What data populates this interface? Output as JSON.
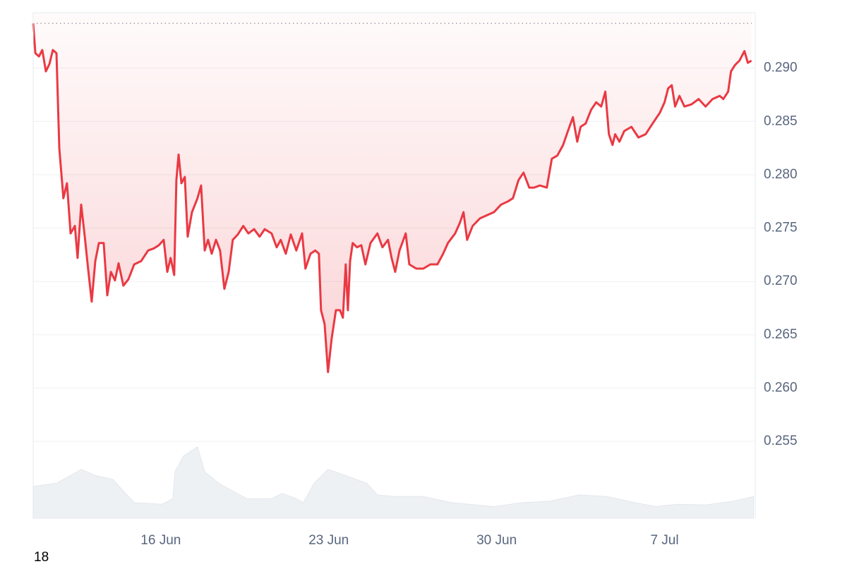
{
  "chart_data": {
    "type": "line",
    "xlim": [
      10.68,
      40.78
    ],
    "ylim": [
      0.2478,
      0.2952
    ],
    "y2lim": [
      0,
      100
    ],
    "xticks": [
      {
        "value": 16,
        "label": "16 Jun"
      },
      {
        "value": 23,
        "label": "23 Jun"
      },
      {
        "value": 30,
        "label": "30 Jun"
      },
      {
        "value": 37,
        "label": "7 Jul"
      }
    ],
    "yticks": [
      {
        "value": 0.255,
        "label": "0.255"
      },
      {
        "value": 0.26,
        "label": "0.260"
      },
      {
        "value": 0.265,
        "label": "0.265"
      },
      {
        "value": 0.27,
        "label": "0.270"
      },
      {
        "value": 0.275,
        "label": "0.275"
      },
      {
        "value": 0.28,
        "label": "0.280"
      },
      {
        "value": 0.285,
        "label": "0.285"
      },
      {
        "value": 0.29,
        "label": "0.290"
      }
    ],
    "grid": true,
    "reference_line": 0.2942,
    "footer_text": "18",
    "series": [
      {
        "color": "#ea3943",
        "x": [
          10.68,
          10.77,
          10.92,
          11.06,
          11.21,
          11.36,
          11.5,
          11.65,
          11.77,
          11.94,
          12.09,
          12.24,
          12.42,
          12.53,
          12.68,
          12.83,
          12.97,
          13.12,
          13.27,
          13.42,
          13.62,
          13.77,
          13.92,
          14.09,
          14.24,
          14.44,
          14.65,
          14.89,
          15.18,
          15.47,
          15.71,
          15.92,
          16.12,
          16.27,
          16.41,
          16.56,
          16.65,
          16.74,
          16.86,
          17.0,
          17.12,
          17.3,
          17.53,
          17.68,
          17.83,
          17.97,
          18.12,
          18.3,
          18.47,
          18.65,
          18.83,
          19.0,
          19.21,
          19.44,
          19.65,
          19.89,
          20.12,
          20.33,
          20.62,
          20.83,
          21.0,
          21.21,
          21.42,
          21.65,
          21.89,
          22.03,
          22.24,
          22.44,
          22.59,
          22.68,
          22.83,
          22.97,
          23.12,
          23.3,
          23.47,
          23.59,
          23.71,
          23.8,
          23.89,
          24.0,
          24.18,
          24.36,
          24.53,
          24.74,
          25.03,
          25.24,
          25.47,
          25.62,
          25.77,
          25.95,
          26.21,
          26.36,
          26.65,
          26.94,
          27.24,
          27.53,
          27.77,
          27.97,
          28.27,
          28.47,
          28.62,
          28.77,
          29.0,
          29.3,
          29.59,
          29.89,
          30.18,
          30.47,
          30.68,
          30.91,
          31.12,
          31.36,
          31.56,
          31.8,
          32.09,
          32.3,
          32.53,
          32.77,
          32.97,
          33.18,
          33.36,
          33.5,
          33.71,
          33.94,
          34.15,
          34.36,
          34.53,
          34.68,
          34.83,
          34.94,
          35.12,
          35.32,
          35.62,
          35.91,
          36.21,
          36.5,
          36.8,
          37.0,
          37.15,
          37.3,
          37.44,
          37.62,
          37.83,
          38.12,
          38.42,
          38.71,
          39.0,
          39.3,
          39.45,
          39.65,
          39.77,
          39.94,
          40.12,
          40.33,
          40.47,
          40.62
        ],
        "values": [
          0.2942,
          0.2914,
          0.2911,
          0.2917,
          0.2897,
          0.2904,
          0.2917,
          0.2914,
          0.2825,
          0.2778,
          0.2792,
          0.2745,
          0.2752,
          0.2722,
          0.2772,
          0.2742,
          0.2712,
          0.2681,
          0.2719,
          0.2736,
          0.2736,
          0.2687,
          0.2709,
          0.2701,
          0.2717,
          0.2696,
          0.2702,
          0.2716,
          0.2719,
          0.2729,
          0.2731,
          0.2734,
          0.2739,
          0.2709,
          0.2722,
          0.2706,
          0.2795,
          0.2819,
          0.2792,
          0.2798,
          0.2742,
          0.2765,
          0.2778,
          0.279,
          0.2729,
          0.2739,
          0.2726,
          0.2739,
          0.2729,
          0.2693,
          0.2709,
          0.2739,
          0.2744,
          0.2752,
          0.2745,
          0.2749,
          0.2742,
          0.2749,
          0.2745,
          0.2732,
          0.2739,
          0.2726,
          0.2744,
          0.2729,
          0.2745,
          0.2712,
          0.2726,
          0.2729,
          0.2726,
          0.2673,
          0.266,
          0.2615,
          0.2646,
          0.2673,
          0.2673,
          0.2666,
          0.2716,
          0.2673,
          0.2719,
          0.2736,
          0.2732,
          0.2734,
          0.2716,
          0.2736,
          0.2745,
          0.2732,
          0.2739,
          0.2722,
          0.2709,
          0.2729,
          0.2745,
          0.2716,
          0.2712,
          0.2712,
          0.2716,
          0.2716,
          0.2726,
          0.2736,
          0.2745,
          0.2755,
          0.2765,
          0.2739,
          0.2752,
          0.2759,
          0.2762,
          0.2765,
          0.2772,
          0.2775,
          0.2778,
          0.2795,
          0.2802,
          0.2788,
          0.2788,
          0.279,
          0.2788,
          0.2815,
          0.2818,
          0.2828,
          0.2841,
          0.2854,
          0.2831,
          0.2845,
          0.2848,
          0.2861,
          0.2868,
          0.2864,
          0.2878,
          0.2838,
          0.2828,
          0.2838,
          0.2831,
          0.2841,
          0.2845,
          0.2835,
          0.2838,
          0.2848,
          0.2858,
          0.2868,
          0.2881,
          0.2884,
          0.2864,
          0.2874,
          0.2864,
          0.2866,
          0.2871,
          0.2864,
          0.2871,
          0.2874,
          0.2871,
          0.2878,
          0.2897,
          0.2903,
          0.2907,
          0.2916,
          0.2905,
          0.2907
        ]
      },
      {
        "color": "#eef1f4",
        "axis": "y2",
        "x": [
          10.68,
          11.65,
          12.24,
          12.68,
          13.27,
          14.0,
          14.44,
          14.89,
          16.06,
          16.5,
          16.59,
          16.94,
          17.53,
          17.83,
          18.42,
          19.0,
          19.59,
          20.62,
          21.06,
          21.65,
          21.94,
          22.39,
          22.97,
          23.71,
          24.59,
          25.03,
          25.77,
          26.94,
          28.12,
          29.89,
          31.06,
          32.24,
          33.42,
          34.59,
          35.77,
          36.65,
          37.53,
          38.71,
          39.89,
          40.71
        ],
        "values": [
          41,
          45,
          55,
          63,
          55,
          50,
          35,
          20,
          18,
          25,
          60,
          80,
          92,
          60,
          45,
          35,
          25,
          25,
          32,
          25,
          20,
          45,
          63,
          55,
          45,
          30,
          28,
          28,
          20,
          15,
          20,
          22,
          30,
          28,
          20,
          15,
          18,
          17,
          22,
          28
        ]
      }
    ]
  }
}
